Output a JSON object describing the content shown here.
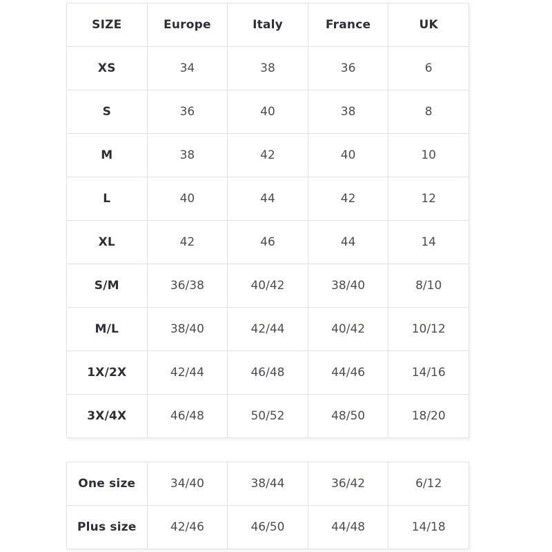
{
  "colors": {
    "background": "#ffffff",
    "border": "#e1e1e4",
    "label_text": "#2e2e36",
    "value_text": "#4c4c53"
  },
  "size_chart": {
    "columns": [
      "SIZE",
      "Europe",
      "Italy",
      "France",
      "UK"
    ],
    "rows": [
      {
        "label": "XS",
        "values": [
          "34",
          "38",
          "36",
          "6"
        ]
      },
      {
        "label": "S",
        "values": [
          "36",
          "40",
          "38",
          "8"
        ]
      },
      {
        "label": "M",
        "values": [
          "38",
          "42",
          "40",
          "10"
        ]
      },
      {
        "label": "L",
        "values": [
          "40",
          "44",
          "42",
          "12"
        ]
      },
      {
        "label": "XL",
        "values": [
          "42",
          "46",
          "44",
          "14"
        ]
      },
      {
        "label": "S/M",
        "values": [
          "36/38",
          "40/42",
          "38/40",
          "8/10"
        ]
      },
      {
        "label": "M/L",
        "values": [
          "38/40",
          "42/44",
          "40/42",
          "10/12"
        ]
      },
      {
        "label": "1X/2X",
        "values": [
          "42/44",
          "46/48",
          "44/46",
          "14/16"
        ]
      },
      {
        "label": "3X/4X",
        "values": [
          "46/48",
          "50/52",
          "48/50",
          "18/20"
        ]
      }
    ]
  },
  "special_sizes": {
    "rows": [
      {
        "label": "One size",
        "values": [
          "34/40",
          "38/44",
          "36/42",
          "6/12"
        ]
      },
      {
        "label": "Plus size",
        "values": [
          "42/46",
          "46/50",
          "44/48",
          "14/18"
        ]
      }
    ]
  }
}
